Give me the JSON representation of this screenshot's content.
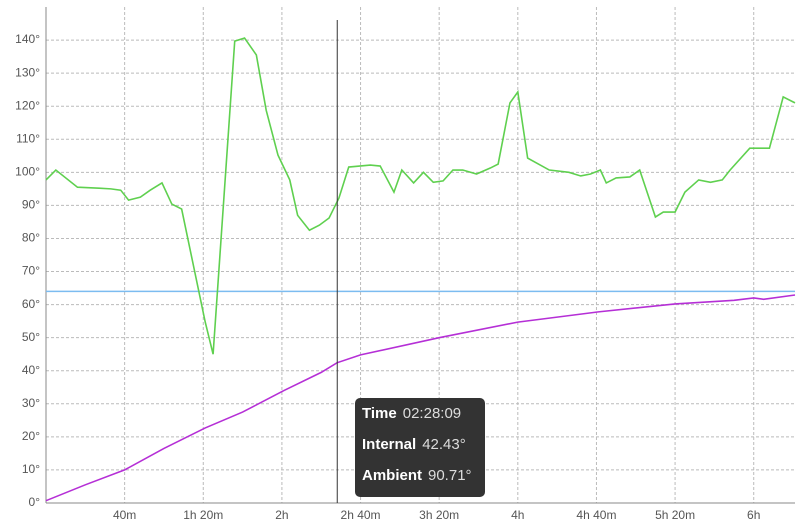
{
  "chart_data": {
    "type": "line",
    "xlim": [
      0,
      381
    ],
    "ylim": [
      0,
      150
    ],
    "xticks": [
      {
        "value": 40,
        "label": "40m"
      },
      {
        "value": 80,
        "label": "1h 20m"
      },
      {
        "value": 120,
        "label": "2h"
      },
      {
        "value": 160,
        "label": "2h 40m"
      },
      {
        "value": 200,
        "label": "3h 20m"
      },
      {
        "value": 240,
        "label": "4h"
      },
      {
        "value": 280,
        "label": "4h 40m"
      },
      {
        "value": 320,
        "label": "5h 20m"
      },
      {
        "value": 360,
        "label": "6h"
      }
    ],
    "yticks": [
      {
        "value": 0,
        "label": "0°"
      },
      {
        "value": 10,
        "label": "10°"
      },
      {
        "value": 20,
        "label": "20°"
      },
      {
        "value": 30,
        "label": "30°"
      },
      {
        "value": 40,
        "label": "40°"
      },
      {
        "value": 50,
        "label": "50°"
      },
      {
        "value": 60,
        "label": "60°"
      },
      {
        "value": 70,
        "label": "70°"
      },
      {
        "value": 80,
        "label": "80°"
      },
      {
        "value": 90,
        "label": "90°"
      },
      {
        "value": 100,
        "label": "100°"
      },
      {
        "value": 110,
        "label": "110°"
      },
      {
        "value": 120,
        "label": "120°"
      },
      {
        "value": 130,
        "label": "130°"
      },
      {
        "value": 140,
        "label": "140°"
      }
    ],
    "grid": true,
    "threshold": {
      "value": 64,
      "color": "#7cbcf0"
    },
    "series": [
      {
        "color": "#5fd04f",
        "x": [
          0,
          5,
          16,
          27,
          33,
          38,
          42,
          48,
          53,
          59,
          64,
          69,
          81,
          85,
          96,
          101,
          107,
          112,
          118,
          124,
          128,
          134,
          139,
          144,
          149,
          154,
          165,
          170,
          177,
          181,
          187,
          192,
          197,
          202,
          207,
          212,
          219,
          226,
          230,
          236,
          240,
          245,
          256,
          266,
          272,
          277,
          282,
          285,
          290,
          297,
          302,
          310,
          314,
          320,
          325,
          332,
          338,
          344,
          348,
          358,
          368,
          375,
          381
        ],
        "values": [
          97.7,
          100.7,
          95.5,
          95.2,
          95,
          94.6,
          91.6,
          92.5,
          94.6,
          96.8,
          90.4,
          88.9,
          54.7,
          45,
          139.7,
          140.6,
          135.5,
          118.8,
          105.2,
          97.7,
          87,
          82.5,
          84,
          86.2,
          92.2,
          101.6,
          102.2,
          101.9,
          94,
          100.7,
          96.8,
          100,
          97,
          97.4,
          100.7,
          100.7,
          99.5,
          101.3,
          102.5,
          121,
          124.3,
          104.3,
          100.7,
          100,
          98.9,
          99.5,
          100.7,
          96.8,
          98.3,
          98.6,
          100.7,
          86.5,
          88,
          88,
          94,
          97.7,
          97,
          97.7,
          100.7,
          107.3,
          107.3,
          122.8,
          121
        ]
      },
      {
        "color": "#b52fd6",
        "x": [
          0,
          20,
          40,
          60,
          81,
          100,
          121,
          140,
          148,
          160,
          200,
          240,
          281,
          320,
          350,
          360,
          365,
          381
        ],
        "values": [
          0.7,
          5.5,
          10,
          16.5,
          22.7,
          27.5,
          34,
          39.5,
          42.4,
          44.8,
          50,
          54.7,
          57.8,
          60.2,
          61.3,
          62,
          61.6,
          62.9
        ]
      }
    ],
    "cursor_x": 148.15,
    "tooltip": {
      "rows": [
        {
          "label": "Time",
          "value": "02:28:09"
        },
        {
          "label": "Internal",
          "value": "42.43°"
        },
        {
          "label": "Ambient",
          "value": "90.71°"
        }
      ]
    }
  }
}
